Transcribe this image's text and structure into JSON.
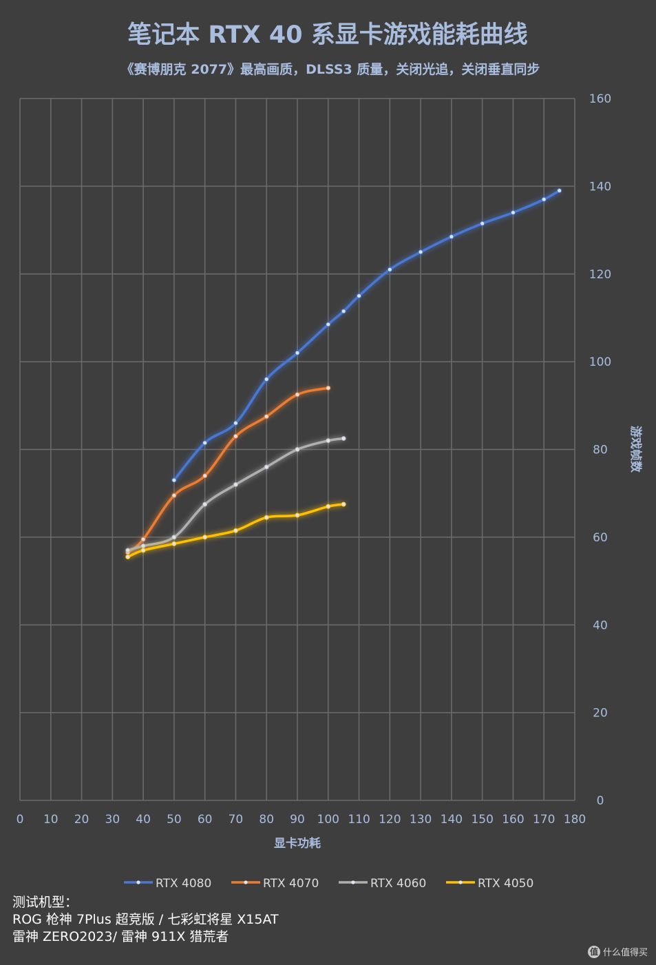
{
  "chart_data": {
    "type": "line",
    "title": "笔记本 RTX 40 系显卡游戏能耗曲线",
    "subtitle": "《赛博朋克 2077》最高画质，DLSS3 质量，关闭光追，关闭垂直同步",
    "xlabel": "显卡功耗",
    "ylabel": "游戏帧数",
    "xlim": [
      0,
      180
    ],
    "ylim": [
      0,
      160
    ],
    "x_ticks": [
      0,
      10,
      20,
      30,
      40,
      50,
      60,
      70,
      80,
      90,
      100,
      110,
      120,
      130,
      140,
      150,
      160,
      170,
      180
    ],
    "y_ticks": [
      0,
      20,
      40,
      60,
      80,
      100,
      120,
      140,
      160
    ],
    "grid": true,
    "y_axis_position": "right",
    "legend_position": "bottom",
    "series": [
      {
        "name": "RTX 4080",
        "color": "#4a78d4",
        "points": [
          [
            50,
            73
          ],
          [
            60,
            81.5
          ],
          [
            70,
            86
          ],
          [
            80,
            96
          ],
          [
            90,
            102
          ],
          [
            100,
            108.5
          ],
          [
            105,
            111.5
          ],
          [
            110,
            115
          ],
          [
            120,
            121
          ],
          [
            130,
            125
          ],
          [
            140,
            128.5
          ],
          [
            150,
            131.5
          ],
          [
            160,
            134
          ],
          [
            170,
            137
          ],
          [
            175,
            139
          ]
        ]
      },
      {
        "name": "RTX 4070",
        "color": "#ed7d31",
        "points": [
          [
            35,
            56.5
          ],
          [
            40,
            59.5
          ],
          [
            50,
            69.5
          ],
          [
            60,
            74
          ],
          [
            70,
            83
          ],
          [
            80,
            87.5
          ],
          [
            90,
            92.5
          ],
          [
            100,
            94
          ]
        ]
      },
      {
        "name": "RTX 4060",
        "color": "#b0b0b0",
        "points": [
          [
            35,
            57
          ],
          [
            40,
            58
          ],
          [
            50,
            60
          ],
          [
            60,
            67.5
          ],
          [
            70,
            72
          ],
          [
            80,
            76
          ],
          [
            90,
            80
          ],
          [
            100,
            82
          ],
          [
            105,
            82.5
          ]
        ]
      },
      {
        "name": "RTX 4050",
        "color": "#ffc000",
        "points": [
          [
            35,
            55.5
          ],
          [
            40,
            57
          ],
          [
            50,
            58.5
          ],
          [
            60,
            60
          ],
          [
            70,
            61.5
          ],
          [
            80,
            64.5
          ],
          [
            90,
            65
          ],
          [
            100,
            67
          ],
          [
            105,
            67.5
          ]
        ]
      }
    ]
  },
  "footnote": {
    "line1": "测试机型：",
    "line2": "ROG 枪神 7Plus 超竞版 / 七彩虹将星 X15AT",
    "line3": "雷神 ZERO2023/ 雷神 911X 猎荒者"
  },
  "watermark": {
    "icon_text": "值",
    "text": "什么值得买"
  }
}
